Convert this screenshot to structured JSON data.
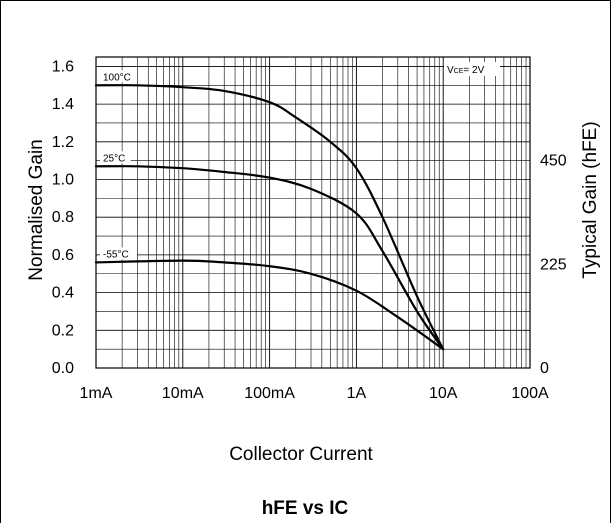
{
  "chart_data": {
    "type": "line",
    "title": "hFE vs IC",
    "xlabel": "Collector Current",
    "ylabel": "Normalised Gain",
    "y2label": "Typical Gain  (hFE)",
    "x_scale": "log",
    "xlim": [
      "1mA",
      "100A"
    ],
    "ylim": [
      0,
      1.65
    ],
    "y2lim": [
      0,
      675
    ],
    "x_ticks": [
      "1mA",
      "10mA",
      "100mA",
      "1A",
      "10A",
      "100A"
    ],
    "y_ticks": [
      "0.0",
      "0.2",
      "0.4",
      "0.6",
      "0.8",
      "1.0",
      "1.2",
      "1.4",
      "1.6"
    ],
    "y2_ticks": [
      "0",
      "225",
      "450"
    ],
    "grid": true,
    "annotation": "V",
    "annotation_sub": "CE",
    "annotation_rest": "= 2V",
    "series": [
      {
        "name": "100°C",
        "points": [
          {
            "x": "1mA",
            "y": 1.5
          },
          {
            "x": "3mA",
            "y": 1.5
          },
          {
            "x": "10mA",
            "y": 1.49
          },
          {
            "x": "30mA",
            "y": 1.47
          },
          {
            "x": "100mA",
            "y": 1.41
          },
          {
            "x": "200mA",
            "y": 1.33
          },
          {
            "x": "500mA",
            "y": 1.2
          },
          {
            "x": "1A",
            "y": 1.06
          },
          {
            "x": "2A",
            "y": 0.8
          },
          {
            "x": "5A",
            "y": 0.38
          },
          {
            "x": "10A",
            "y": 0.1
          }
        ]
      },
      {
        "name": "25°C",
        "points": [
          {
            "x": "1mA",
            "y": 1.07
          },
          {
            "x": "3mA",
            "y": 1.07
          },
          {
            "x": "10mA",
            "y": 1.06
          },
          {
            "x": "30mA",
            "y": 1.04
          },
          {
            "x": "100mA",
            "y": 1.01
          },
          {
            "x": "300mA",
            "y": 0.95
          },
          {
            "x": "1A",
            "y": 0.82
          },
          {
            "x": "2A",
            "y": 0.62
          },
          {
            "x": "5A",
            "y": 0.3
          },
          {
            "x": "10A",
            "y": 0.1
          }
        ]
      },
      {
        "name": "-55°C",
        "points": [
          {
            "x": "1mA",
            "y": 0.56
          },
          {
            "x": "10mA",
            "y": 0.57
          },
          {
            "x": "30mA",
            "y": 0.56
          },
          {
            "x": "100mA",
            "y": 0.54
          },
          {
            "x": "300mA",
            "y": 0.5
          },
          {
            "x": "1A",
            "y": 0.41
          },
          {
            "x": "3A",
            "y": 0.27
          },
          {
            "x": "10A",
            "y": 0.1
          }
        ]
      }
    ]
  }
}
